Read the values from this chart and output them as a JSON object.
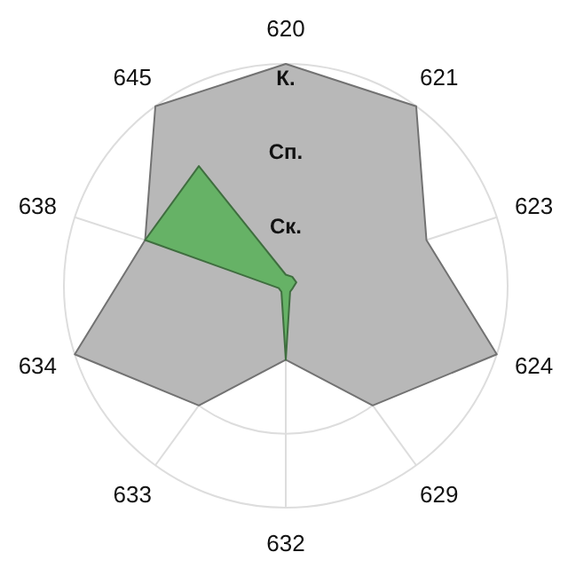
{
  "chart_data": {
    "type": "radar",
    "categories": [
      "620",
      "621",
      "623",
      "624",
      "629",
      "632",
      "633",
      "634",
      "638",
      "645"
    ],
    "series": [
      {
        "color": "#b8b8b8",
        "values": [
          3,
          3,
          2,
          3,
          2,
          1,
          2,
          3,
          2,
          3
        ]
      },
      {
        "color": "#66b266",
        "values": [
          0.15,
          0.15,
          0.15,
          0.1,
          0.1,
          1,
          0.1,
          0.1,
          2,
          2
        ]
      }
    ],
    "ylim": [
      0,
      3
    ],
    "yticks": [
      {
        "value": 1,
        "label": "Ск."
      },
      {
        "value": 2,
        "label": "Сп."
      },
      {
        "value": 3,
        "label": "К."
      }
    ],
    "grid": true
  }
}
